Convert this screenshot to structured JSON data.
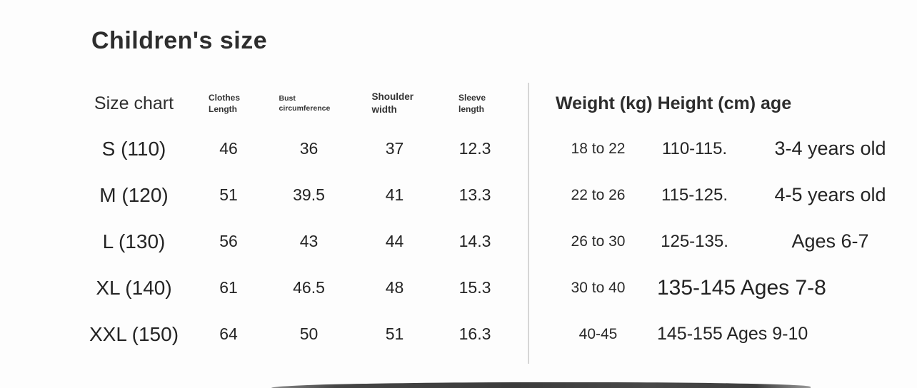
{
  "page": {
    "title": "Children's size",
    "background_color": "#fdfdfd",
    "text_color": "#2b2b2b",
    "divider_color": "#d6d6d6"
  },
  "size_table": {
    "headers": {
      "size": "Size chart",
      "clothes_length": "Clothes Length",
      "bust": "Bust circumference",
      "shoulder": "Shoulder width",
      "sleeve": "Sleeve length"
    },
    "rows": [
      {
        "size": "S (110)",
        "clothes_length": "46",
        "bust": "36",
        "shoulder": "37",
        "sleeve": "12.3"
      },
      {
        "size": "M (120)",
        "clothes_length": "51",
        "bust": "39.5",
        "shoulder": "41",
        "sleeve": "13.3"
      },
      {
        "size": "L (130)",
        "clothes_length": "56",
        "bust": "43",
        "shoulder": "44",
        "sleeve": "14.3"
      },
      {
        "size": "XL (140)",
        "clothes_length": "61",
        "bust": "46.5",
        "shoulder": "48",
        "sleeve": "15.3"
      },
      {
        "size": "XXL (150)",
        "clothes_length": "64",
        "bust": "50",
        "shoulder": "51",
        "sleeve": "16.3"
      }
    ]
  },
  "fit_table": {
    "header": "Weight (kg) Height (cm) age",
    "rows": [
      {
        "weight": "18 to 22",
        "height": "110-115.",
        "age": "3-4 years old"
      },
      {
        "weight": "22 to 26",
        "height": "115-125.",
        "age": "4-5 years old"
      },
      {
        "weight": "26 to 30",
        "height": "125-135.",
        "age": "Ages 6-7"
      },
      {
        "weight": "30 to 40",
        "height_age": "135-145 Ages 7-8"
      },
      {
        "weight": "40-45",
        "height_age": "145-155 Ages 9-10"
      }
    ]
  }
}
